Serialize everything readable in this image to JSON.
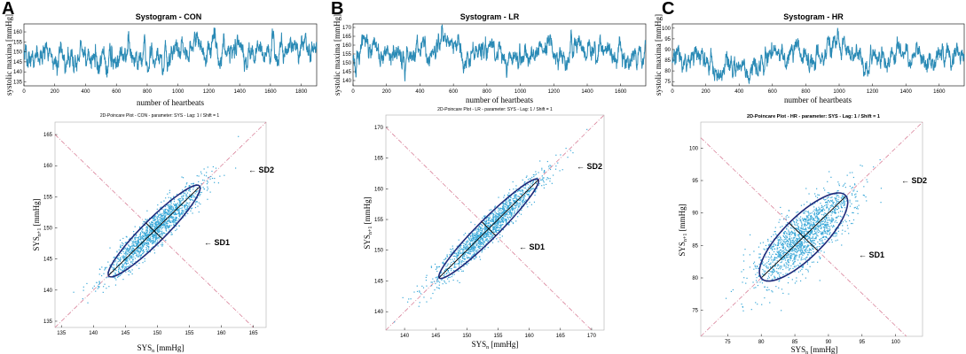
{
  "panel_letters": [
    "A",
    "B",
    "C"
  ],
  "chart_data": [
    {
      "id": "A",
      "type": "line",
      "title": "Systogram - CON",
      "xlabel": "number of heartbeats",
      "ylabel": "systolic maxima [mmHg]",
      "xlim": [
        0,
        1900
      ],
      "ylim": [
        133,
        164
      ],
      "xticks": [
        0,
        200,
        400,
        600,
        800,
        1000,
        1200,
        1400,
        1600,
        1800
      ],
      "yticks": [
        135,
        140,
        145,
        150,
        155,
        160
      ],
      "n": 1900,
      "mean": 149,
      "sd": 4.5,
      "seed": 11,
      "color": "#2a8ab5"
    },
    {
      "id": "B",
      "type": "line",
      "title": "Systogram - LR",
      "xlabel": "number of heartbeats",
      "ylabel": "systolic maxima [mmHg]",
      "xlim": [
        0,
        1750
      ],
      "ylim": [
        137,
        172
      ],
      "xticks": [
        0,
        200,
        400,
        600,
        800,
        1000,
        1200,
        1400,
        1600
      ],
      "yticks": [
        140,
        145,
        150,
        155,
        160,
        165,
        170
      ],
      "n": 1750,
      "mean": 154,
      "sd": 5,
      "seed": 23,
      "color": "#2a8ab5"
    },
    {
      "id": "C",
      "type": "line",
      "title": "Systogram - HR",
      "xlabel": "number of heartbeats",
      "ylabel": "systolic maxima [mmHg]",
      "xlim": [
        0,
        1750
      ],
      "ylim": [
        73,
        102
      ],
      "xticks": [
        0,
        200,
        400,
        600,
        800,
        1000,
        1200,
        1400,
        1600
      ],
      "yticks": [
        75,
        80,
        85,
        90,
        95,
        100
      ],
      "n": 1750,
      "mean": 86,
      "sd": 4,
      "seed": 37,
      "color": "#2a8ab5"
    },
    {
      "id": "A",
      "type": "scatter",
      "title": "2D-Poincare Plot  -  CON  -  parameter: SYS  -  Lag: 1   /   Shift = 1",
      "xlabel_base": "SYS",
      "xlabel_sub": "n",
      "xlabel_unit": " [mmHg]",
      "ylabel_base": "SYS",
      "ylabel_sub": "n+1",
      "ylabel_unit": " [mmHg]",
      "xlim": [
        134,
        167
      ],
      "ylim": [
        134,
        167
      ],
      "xticks": [
        135,
        140,
        145,
        150,
        155,
        160,
        165
      ],
      "yticks": [
        135,
        140,
        145,
        150,
        155,
        160,
        165
      ],
      "center": 149.5,
      "sd1": 0.9,
      "sd2": 5.0,
      "n": 1500,
      "seed": 51,
      "sd1_label": "SD1",
      "sd2_label": "SD2",
      "ellipse_scale": 2,
      "color": "#3aa8d8"
    },
    {
      "id": "B",
      "type": "scatter",
      "title": "2D-Poincare Plot  -  LR  -  parameter: SYS  -  Lag: 1   /   Shift = 1",
      "xlabel_base": "SYS",
      "xlabel_sub": "n",
      "xlabel_unit": " [mmHg]",
      "ylabel_base": "SYS",
      "ylabel_sub": "n+1",
      "ylabel_unit": " [mmHg]",
      "xlim": [
        137,
        172
      ],
      "ylim": [
        137,
        172
      ],
      "xticks": [
        140,
        145,
        150,
        155,
        160,
        165,
        170
      ],
      "yticks": [
        140,
        145,
        150,
        155,
        160,
        165,
        170
      ],
      "center": 153.5,
      "sd1": 0.8,
      "sd2": 5.6,
      "n": 1500,
      "seed": 63,
      "sd1_label": "SD1",
      "sd2_label": "SD2",
      "ellipse_scale": 2,
      "color": "#3aa8d8"
    },
    {
      "id": "C",
      "type": "scatter",
      "title": "2D-Poincare Plot  -  HR  -  parameter: SYS  -  Lag: 1   /   Shift = 1",
      "xlabel_base": "SYS",
      "xlabel_sub": "n",
      "xlabel_unit": " [mmHg]",
      "ylabel_base": "SYS",
      "ylabel_sub": "n+1",
      "ylabel_unit": " [mmHg]",
      "xlim": [
        71,
        104
      ],
      "ylim": [
        71,
        104
      ],
      "xticks": [
        75,
        80,
        85,
        90,
        95,
        100
      ],
      "yticks": [
        75,
        80,
        85,
        90,
        95,
        100
      ],
      "center": 86.3,
      "sd1": 1.5,
      "sd2": 4.4,
      "n": 1600,
      "seed": 79,
      "sd1_label": "SD1",
      "sd2_label": "SD2",
      "ellipse_scale": 2,
      "color": "#3aa8d8"
    }
  ]
}
